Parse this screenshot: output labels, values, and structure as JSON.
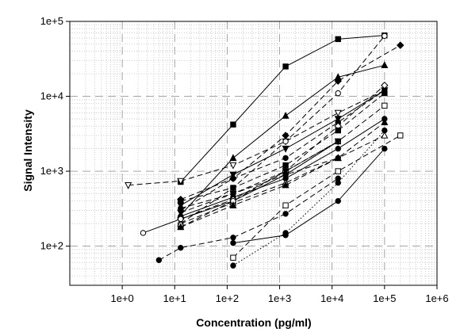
{
  "chart_data": {
    "type": "line",
    "title": "",
    "xlabel": "Concentration (pg/ml)",
    "ylabel": "Signal Intensity",
    "x_scale": "log",
    "y_scale": "log",
    "xlim": [
      0.1,
      1000000
    ],
    "ylim": [
      30,
      100000
    ],
    "x_ticks": [
      "1e+0",
      "1e+1",
      "1e+2",
      "1e+3",
      "1e+4",
      "1e+5",
      "1e+6"
    ],
    "y_ticks": [
      "1e+2",
      "1e+3",
      "1e+4",
      "1e+5"
    ],
    "grid": "major dashed, minor dotted",
    "legend": "none",
    "series": [
      {
        "marker": "square-filled",
        "dash": "solid",
        "x": [
          13,
          130,
          1300,
          13000,
          100000
        ],
        "y": [
          720,
          4200,
          25000,
          58000,
          65000
        ]
      },
      {
        "marker": "triangle-down-open",
        "dash": "dashed",
        "x": [
          1.3,
          13,
          130,
          1300,
          13000,
          100000
        ],
        "y": [
          650,
          740,
          1200,
          2500,
          6000,
          12000
        ]
      },
      {
        "marker": "circle-open",
        "dash": "dashed",
        "x": [
          13,
          130,
          1300,
          13000,
          100000
        ],
        "y": [
          200,
          600,
          2500,
          11000,
          64000
        ]
      },
      {
        "marker": "diamond-filled",
        "dash": "dashed",
        "x": [
          13,
          130,
          1300,
          13000,
          200000
        ],
        "y": [
          420,
          800,
          3000,
          16000,
          48000
        ]
      },
      {
        "marker": "triangle-up-filled",
        "dash": "solid",
        "x": [
          13,
          130,
          1300,
          13000,
          100000
        ],
        "y": [
          260,
          1500,
          5500,
          18000,
          26000
        ]
      },
      {
        "marker": "circle-filled",
        "dash": "dashed",
        "x": [
          13,
          130,
          1300,
          13000,
          100000
        ],
        "y": [
          300,
          800,
          1500,
          4500,
          12000
        ]
      },
      {
        "marker": "triangle-down-filled",
        "dash": "solid",
        "x": [
          13,
          130,
          1300,
          13000,
          100000
        ],
        "y": [
          350,
          900,
          2000,
          5000,
          12000
        ]
      },
      {
        "marker": "square-open",
        "dash": "dashed",
        "x": [
          13,
          130,
          1300,
          13000,
          100000
        ],
        "y": [
          180,
          400,
          1000,
          2500,
          7500
        ]
      },
      {
        "marker": "circle-filled",
        "dash": "solid",
        "x": [
          13,
          130,
          1300,
          13000,
          100000
        ],
        "y": [
          250,
          450,
          800,
          2000,
          5000
        ]
      },
      {
        "marker": "triangle-up-open",
        "dash": "dashed",
        "x": [
          13,
          130,
          1300,
          13000,
          100000
        ],
        "y": [
          200,
          380,
          700,
          1500,
          3000
        ]
      },
      {
        "marker": "diamond-open",
        "dash": "dashed",
        "x": [
          13,
          130,
          1300,
          13000,
          100000
        ],
        "y": [
          230,
          420,
          1000,
          4000,
          14000
        ]
      },
      {
        "marker": "square-filled",
        "dash": "dashed",
        "x": [
          13,
          130,
          1300,
          13000,
          100000
        ],
        "y": [
          400,
          600,
          1200,
          3500,
          11000
        ]
      },
      {
        "marker": "circle-open",
        "dash": "solid",
        "x": [
          2.5,
          13,
          130,
          1300,
          13000
        ],
        "y": [
          150,
          230,
          400,
          900,
          2500
        ]
      },
      {
        "marker": "triangle-up-filled",
        "dash": "dashed",
        "x": [
          13,
          130,
          1300,
          13000,
          100000
        ],
        "y": [
          180,
          350,
          650,
          1500,
          4500
        ]
      },
      {
        "marker": "circle-filled",
        "dash": "dashed",
        "x": [
          13,
          130,
          1300,
          13000
        ],
        "y": [
          320,
          500,
          900,
          1500
        ]
      },
      {
        "marker": "triangle-down-filled",
        "dash": "dashed",
        "x": [
          13,
          130,
          1300,
          13000
        ],
        "y": [
          280,
          500,
          1000,
          2500
        ]
      },
      {
        "marker": "circle-filled",
        "dash": "dashed",
        "x": [
          5,
          13,
          130,
          1300,
          13000
        ],
        "y": [
          65,
          95,
          130,
          270,
          800
        ]
      },
      {
        "marker": "circle-filled",
        "dash": "solid",
        "x": [
          130,
          1300,
          13000,
          100000
        ],
        "y": [
          110,
          140,
          400,
          2000
        ]
      },
      {
        "marker": "circle-filled",
        "dash": "dotted",
        "x": [
          130,
          1300,
          13000,
          100000
        ],
        "y": [
          55,
          150,
          700,
          3500
        ]
      },
      {
        "marker": "square-open",
        "dash": "dashed",
        "x": [
          130,
          1300,
          13000,
          200000
        ],
        "y": [
          70,
          350,
          1000,
          3000
        ]
      }
    ]
  }
}
